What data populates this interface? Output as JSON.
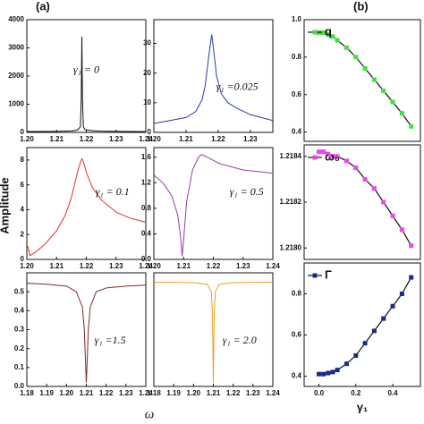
{
  "figure": {
    "panel_labels": [
      "(a)",
      "(b)"
    ],
    "ylabel": "Amplitude",
    "xlabel": "ω"
  },
  "chart_data": [
    {
      "type": "line",
      "annotation": "γ₁ = 0",
      "xlim": [
        1.2,
        1.24
      ],
      "ylim": [
        0,
        4000
      ],
      "xticks": [
        {
          "value": 1.2,
          "label": "1.20"
        },
        1.21,
        1.22,
        1.23,
        1.24
      ],
      "yticks": [
        0,
        1000,
        2000,
        3000,
        4000
      ],
      "x": [
        1.2,
        1.205,
        1.21,
        1.215,
        1.217,
        1.218,
        1.2183,
        1.2185,
        1.2187,
        1.219,
        1.2195,
        1.222,
        1.225,
        1.23,
        1.235,
        1.24
      ],
      "series": [
        {
          "color": "#111111",
          "values": [
            30,
            30,
            35,
            50,
            80,
            200,
            1200,
            3400,
            1200,
            200,
            100,
            60,
            45,
            35,
            30,
            28
          ]
        }
      ]
    },
    {
      "type": "line",
      "annotation": "γ₁ =0.025",
      "xlim": [
        1.2,
        1.237
      ],
      "ylim": [
        0,
        38
      ],
      "xticks": [
        {
          "value": 1.2,
          "label": "1.20"
        },
        1.21,
        1.22,
        1.23
      ],
      "yticks": [
        0,
        10,
        20,
        30
      ],
      "x": [
        1.2,
        1.205,
        1.21,
        1.213,
        1.215,
        1.216,
        1.217,
        1.218,
        1.219,
        1.2195,
        1.221,
        1.223,
        1.226,
        1.23,
        1.237
      ],
      "series": [
        {
          "color": "#2b3aa8",
          "values": [
            3,
            4,
            5,
            7,
            11,
            16,
            25,
            33,
            24,
            19,
            13,
            10,
            8,
            6,
            4
          ]
        }
      ]
    },
    {
      "type": "line",
      "annotation": "γ₁ = 0.1",
      "xlim": [
        1.2,
        1.24
      ],
      "ylim": [
        0,
        9
      ],
      "xticks": [
        {
          "value": 1.2,
          "label": "1.20"
        },
        1.21,
        1.22,
        1.23,
        1.24
      ],
      "yticks": [
        0,
        2,
        4,
        6,
        8
      ],
      "x": [
        1.2,
        1.2005,
        1.201,
        1.203,
        1.206,
        1.21,
        1.213,
        1.215,
        1.217,
        1.218,
        1.2185,
        1.219,
        1.22,
        1.222,
        1.225,
        1.23,
        1.235,
        1.24
      ],
      "series": [
        {
          "color": "#e03030",
          "values": [
            1.2,
            0.9,
            0.3,
            0.6,
            1.2,
            2.3,
            3.6,
            5,
            7,
            7.8,
            8.1,
            7.9,
            7,
            5.8,
            4.8,
            3.8,
            3.3,
            3.0
          ]
        }
      ]
    },
    {
      "type": "line",
      "annotation": "γ₁ = 0.5",
      "xlim": [
        1.2,
        1.24
      ],
      "ylim": [
        0,
        1.75
      ],
      "xticks": [
        {
          "value": 1.2,
          "label": "1.20"
        },
        1.21,
        1.22,
        1.23,
        1.24
      ],
      "yticks": [
        {
          "value": 0,
          "label": "0.0"
        },
        0.4,
        0.8,
        1.2,
        1.6
      ],
      "x": [
        1.2,
        1.203,
        1.206,
        1.208,
        1.209,
        1.2095,
        1.21,
        1.211,
        1.213,
        1.215,
        1.216,
        1.218,
        1.222,
        1.23,
        1.24
      ],
      "series": [
        {
          "color": "#9a3aa8",
          "values": [
            1.32,
            1.2,
            1.0,
            0.7,
            0.35,
            0.05,
            0.3,
            0.9,
            1.4,
            1.6,
            1.64,
            1.6,
            1.5,
            1.4,
            1.35
          ]
        }
      ]
    },
    {
      "type": "line",
      "annotation": "γ₁ =1.5",
      "xlim": [
        1.18,
        1.24
      ],
      "ylim": [
        0,
        0.6
      ],
      "xticks": [
        1.18,
        1.19,
        {
          "value": 1.2,
          "label": "1.20"
        },
        1.21,
        1.22,
        1.23,
        1.24
      ],
      "yticks": [
        {
          "value": 0,
          "label": "0.0"
        },
        0.1,
        0.2,
        0.3,
        0.4,
        0.5
      ],
      "x": [
        1.18,
        1.19,
        1.2,
        1.205,
        1.208,
        1.209,
        1.2095,
        1.21,
        1.2105,
        1.211,
        1.212,
        1.215,
        1.22,
        1.23,
        1.24
      ],
      "series": [
        {
          "color": "#7a2a2a",
          "values": [
            0.545,
            0.54,
            0.53,
            0.5,
            0.42,
            0.3,
            0.15,
            0.02,
            0.15,
            0.3,
            0.42,
            0.5,
            0.52,
            0.53,
            0.535
          ]
        }
      ]
    },
    {
      "type": "line",
      "annotation": "γ₁ = 2.0",
      "xlim": [
        1.18,
        1.24
      ],
      "ylim": [
        0,
        0.6
      ],
      "xticks": [
        1.18,
        1.19,
        {
          "value": 1.2,
          "label": "1.20"
        },
        1.21,
        1.22,
        1.23,
        1.24
      ],
      "x": [
        1.18,
        1.19,
        1.2,
        1.207,
        1.209,
        1.2095,
        1.2098,
        1.21,
        1.2102,
        1.2105,
        1.211,
        1.213,
        1.22,
        1.23,
        1.24
      ],
      "series": [
        {
          "color": "#e8a020",
          "values": [
            0.55,
            0.55,
            0.548,
            0.54,
            0.5,
            0.4,
            0.2,
            0.02,
            0.2,
            0.4,
            0.5,
            0.54,
            0.548,
            0.55,
            0.55
          ]
        }
      ]
    },
    {
      "type": "line",
      "marker": "square",
      "xlim": [
        -0.08,
        0.55
      ],
      "ylim": [
        0.35,
        1.0
      ],
      "yticks": [
        0.4,
        0.6,
        0.8,
        {
          "value": 1.0,
          "label": "1.0"
        }
      ],
      "x": [
        0,
        0.025,
        0.05,
        0.075,
        0.1,
        0.15,
        0.2,
        0.25,
        0.3,
        0.35,
        0.4,
        0.45,
        0.5
      ],
      "series": [
        {
          "name": "q",
          "color": "#44dd44",
          "values": [
            0.93,
            0.93,
            0.92,
            0.91,
            0.89,
            0.85,
            0.8,
            0.74,
            0.68,
            0.62,
            0.56,
            0.5,
            0.43
          ]
        }
      ]
    },
    {
      "type": "line",
      "marker": "square",
      "xlim": [
        -0.08,
        0.55
      ],
      "ylim": [
        1.21795,
        1.21845
      ],
      "yticks": [
        {
          "value": 1.218,
          "label": "1.2180"
        },
        1.2182,
        1.2184
      ],
      "x": [
        0,
        0.025,
        0.05,
        0.075,
        0.1,
        0.15,
        0.2,
        0.25,
        0.3,
        0.35,
        0.4,
        0.45,
        0.5
      ],
      "series": [
        {
          "name": "ω₀",
          "color": "#ee44ee",
          "values": [
            1.21842,
            1.21842,
            1.21841,
            1.2184,
            1.2184,
            1.21838,
            1.21835,
            1.2183,
            1.21826,
            1.2182,
            1.21814,
            1.21808,
            1.21801
          ]
        }
      ]
    },
    {
      "type": "line",
      "marker": "square",
      "xlabel": "γ₁",
      "xlim": [
        -0.08,
        0.55
      ],
      "ylim": [
        0.35,
        0.95
      ],
      "xticks": [
        {
          "value": 0,
          "label": "0.0"
        },
        0.2,
        0.4
      ],
      "yticks": [
        0.4,
        0.6,
        0.8
      ],
      "x": [
        0,
        0.025,
        0.05,
        0.075,
        0.1,
        0.15,
        0.2,
        0.25,
        0.3,
        0.35,
        0.4,
        0.45,
        0.5
      ],
      "series": [
        {
          "name": "Γ",
          "color": "#1a2a8a",
          "values": [
            0.41,
            0.41,
            0.415,
            0.42,
            0.43,
            0.46,
            0.5,
            0.56,
            0.62,
            0.68,
            0.74,
            0.8,
            0.88
          ]
        }
      ]
    }
  ]
}
